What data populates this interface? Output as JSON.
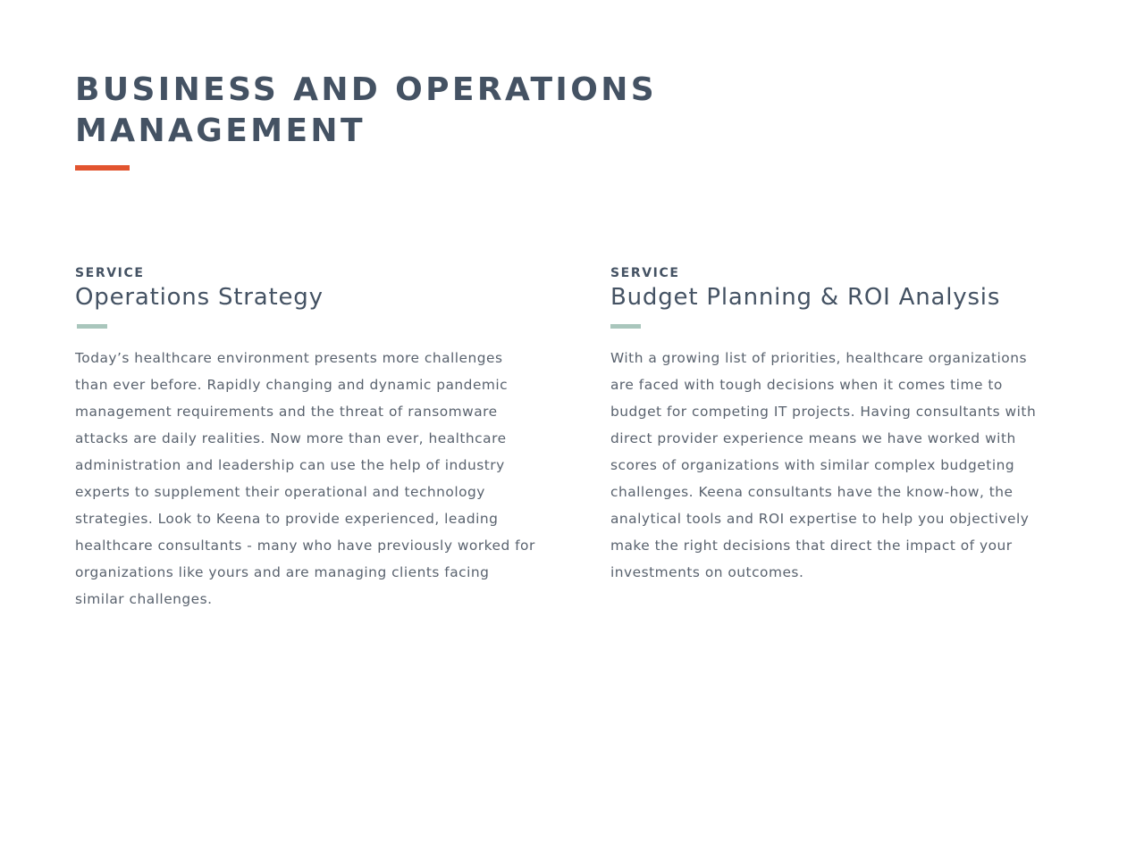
{
  "page": {
    "heading": "BUSINESS AND OPERATIONS MANAGEMENT",
    "accent_color": "#e2542f",
    "rule_color": "#a9c6bc",
    "text_color": "#445263"
  },
  "services": [
    {
      "eyebrow": "SERVICE",
      "title": "Operations Strategy",
      "body": "Today’s healthcare environment presents more challenges than ever before. Rapidly changing and dynamic pandemic management requirements and the threat of ransomware attacks are daily realities. Now more than ever, healthcare administration and leadership can use the help of industry experts to supplement their operational and technology strategies. Look to Keena to provide experienced, leading healthcare consultants - many who have previously worked for organizations like yours and are managing clients facing similar challenges."
    },
    {
      "eyebrow": "SERVICE",
      "title": "Budget Planning & ROI Analysis",
      "body": "With a growing list of priorities, healthcare organizations are faced with tough decisions when it comes time to budget for competing IT projects. Having consultants with direct provider experience means we have worked with scores of organizations with similar complex budgeting challenges. Keena consultants have the know-how, the analytical tools and ROI expertise to help you objectively make the right decisions that direct the impact of your investments on outcomes."
    }
  ]
}
